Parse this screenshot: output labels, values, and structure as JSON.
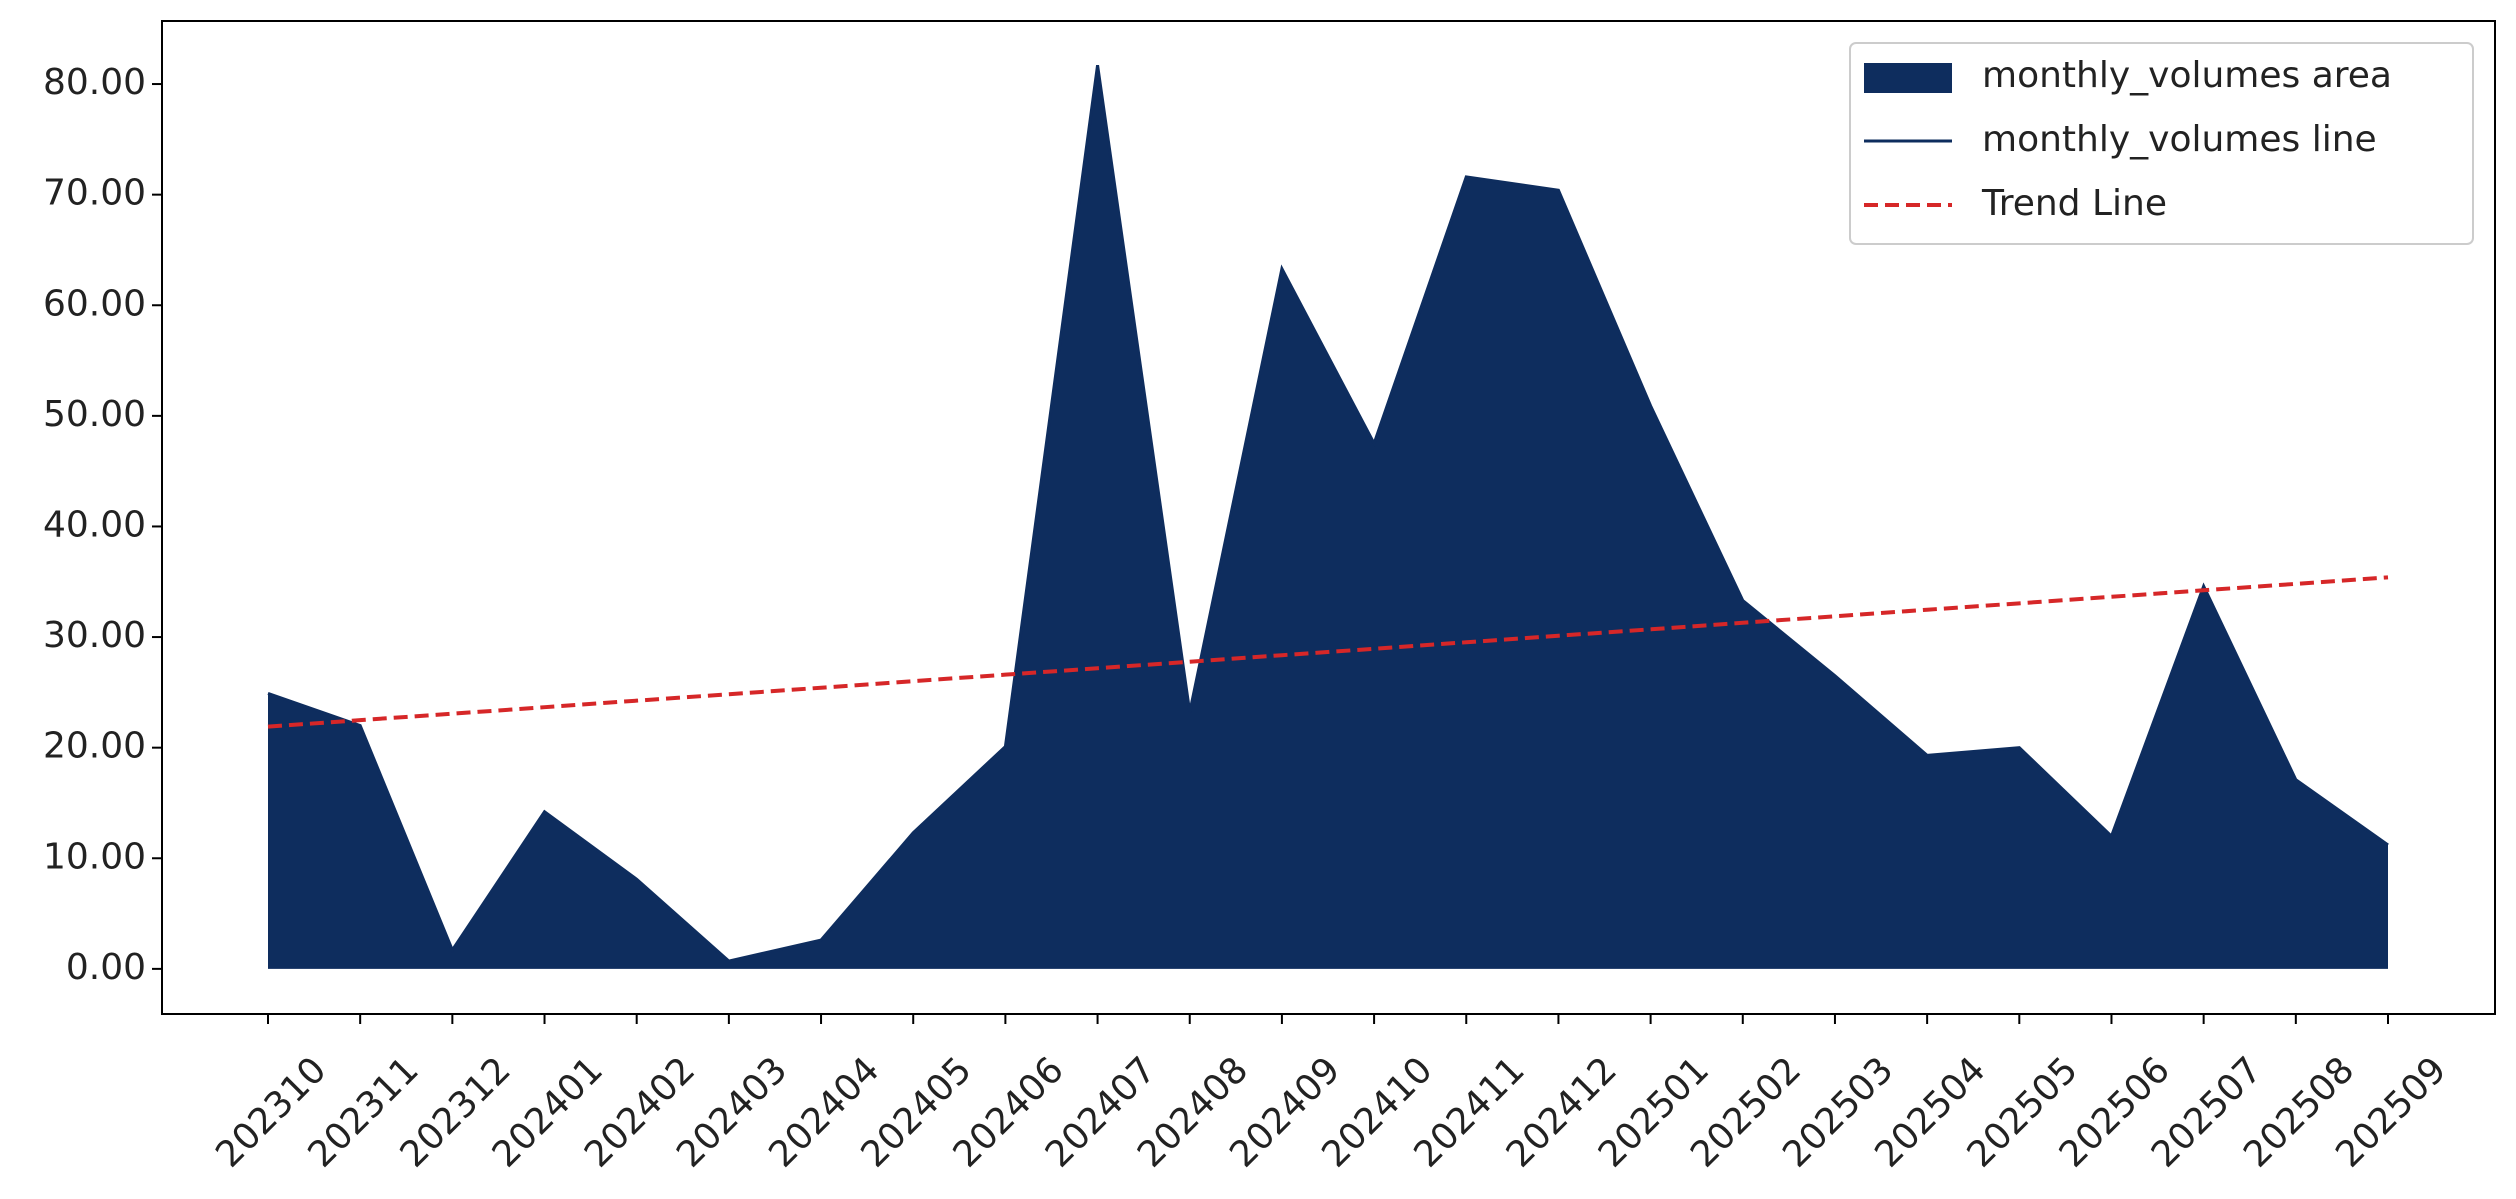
{
  "chart_data": {
    "type": "area",
    "categories": [
      "202310",
      "202311",
      "202312",
      "202401",
      "202402",
      "202403",
      "202404",
      "202405",
      "202406",
      "202407",
      "202408",
      "202409",
      "202410",
      "202411",
      "202412",
      "202501",
      "202502",
      "202503",
      "202504",
      "202505",
      "202506",
      "202507",
      "202508",
      "202509"
    ],
    "series": [
      {
        "name": "monthly_volumes area",
        "color": "#0e2d5e",
        "style": "area",
        "values": [
          24.9,
          22.0,
          1.7,
          14.2,
          8.1,
          0.7,
          2.6,
          12.3,
          20.1,
          81.7,
          23.2,
          63.3,
          47.5,
          71.6,
          70.4,
          50.9,
          33.3,
          26.5,
          19.3,
          20.0,
          12.0,
          34.6,
          17.1,
          11.2
        ]
      },
      {
        "name": "monthly_volumes line",
        "color": "#0e2d5e",
        "style": "line",
        "values": [
          24.9,
          22.0,
          1.7,
          14.2,
          8.1,
          0.7,
          2.6,
          12.3,
          20.1,
          81.7,
          23.2,
          63.3,
          47.5,
          71.6,
          70.4,
          50.9,
          33.3,
          26.5,
          19.3,
          20.0,
          12.0,
          34.6,
          17.1,
          11.2
        ]
      },
      {
        "name": "Trend Line",
        "color": "#d62728",
        "style": "dashed",
        "values": [
          21.9,
          22.49,
          23.07,
          23.66,
          24.25,
          24.83,
          25.42,
          26.01,
          26.6,
          27.18,
          27.77,
          28.36,
          28.94,
          29.53,
          30.12,
          30.7,
          31.29,
          31.88,
          32.47,
          33.05,
          33.64,
          34.23,
          34.81,
          35.4
        ]
      }
    ],
    "ylim": [
      -4.08,
      85.7
    ],
    "yticks": [
      {
        "value": 0,
        "label": "0.00"
      },
      {
        "value": 10,
        "label": "10.00"
      },
      {
        "value": 20,
        "label": "20.00"
      },
      {
        "value": 30,
        "label": "30.00"
      },
      {
        "value": 40,
        "label": "40.00"
      },
      {
        "value": 50,
        "label": "50.00"
      },
      {
        "value": 60,
        "label": "60.00"
      },
      {
        "value": 70,
        "label": "70.00"
      },
      {
        "value": 80,
        "label": "80.00"
      }
    ],
    "legend": "upper right"
  }
}
